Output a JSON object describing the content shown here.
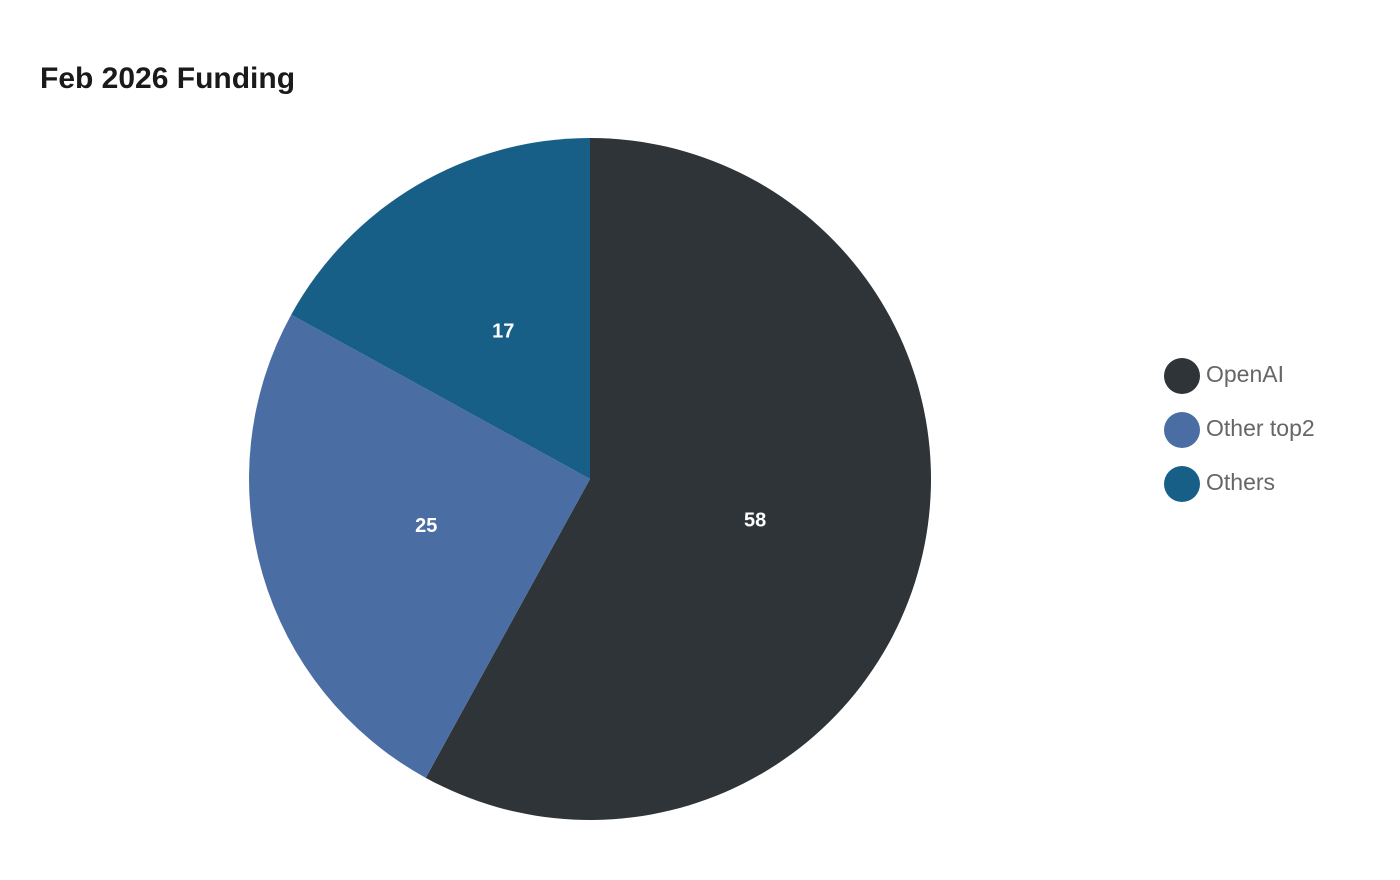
{
  "chart_data": {
    "type": "pie",
    "title": "Feb 2026 Funding",
    "categories": [
      "OpenAI",
      "Other top2",
      "Others"
    ],
    "values": [
      58,
      25,
      17
    ],
    "colors": [
      "#2e3437",
      "#4a6ea3",
      "#185f88"
    ],
    "legend": "right"
  }
}
